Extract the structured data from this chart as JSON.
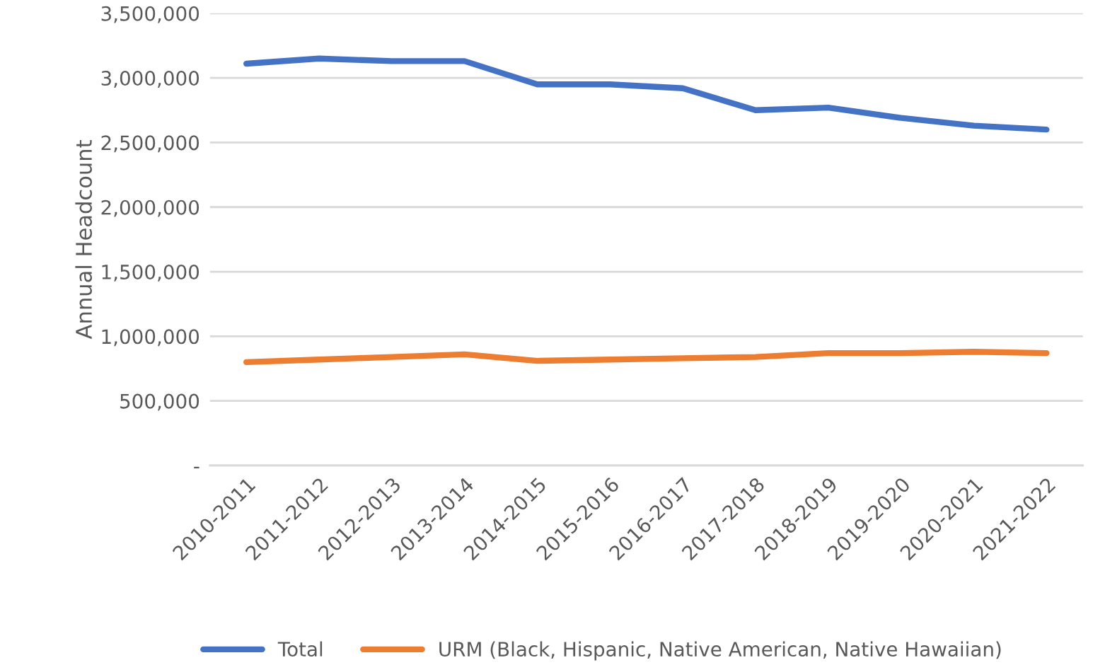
{
  "chart_data": {
    "type": "line",
    "ylabel": "Annual Headcount",
    "categories": [
      "2010-2011",
      "2011-2012",
      "2012-2013",
      "2013-2014",
      "2014-2015",
      "2015-2016",
      "2016-2017",
      "2017-2018",
      "2018-2019",
      "2019-2020",
      "2020-2021",
      "2021-2022"
    ],
    "series": [
      {
        "name": "Total",
        "color": "#4472c4",
        "values": [
          3110000,
          3150000,
          3130000,
          3130000,
          2950000,
          2950000,
          2920000,
          2750000,
          2770000,
          2690000,
          2630000,
          2600000
        ]
      },
      {
        "name": "URM (Black, Hispanic, Native American, Native Hawaiian)",
        "color": "#ed7d31",
        "values": [
          800000,
          820000,
          840000,
          860000,
          810000,
          820000,
          830000,
          840000,
          870000,
          870000,
          880000,
          870000
        ]
      }
    ],
    "ylim": [
      0,
      3500000
    ],
    "yticks": [
      {
        "value": 0,
        "label": "-"
      },
      {
        "value": 500000,
        "label": "500,000"
      },
      {
        "value": 1000000,
        "label": "1,000,000"
      },
      {
        "value": 1500000,
        "label": "1,500,000"
      },
      {
        "value": 2000000,
        "label": "2,000,000"
      },
      {
        "value": 2500000,
        "label": "2,500,000"
      },
      {
        "value": 3000000,
        "label": "3,000,000"
      },
      {
        "value": 3500000,
        "label": "3,500,000"
      }
    ],
    "grid": "y",
    "legend": "bottom",
    "marker": "none",
    "line_style": "solid"
  }
}
